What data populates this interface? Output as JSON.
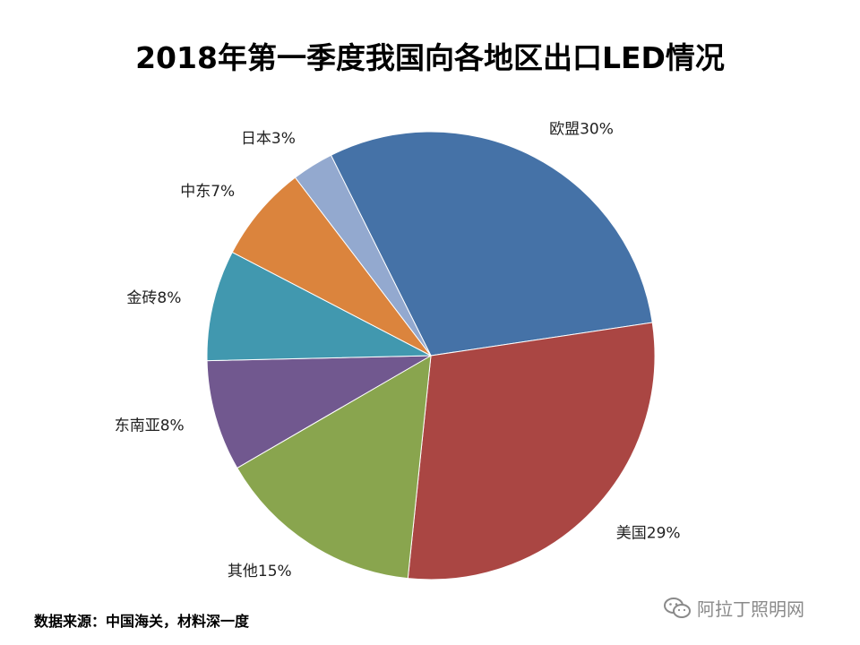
{
  "chart_data": {
    "type": "pie",
    "title": "2018年第一季度我国向各地区出口LED情况",
    "categories": [
      "欧盟",
      "美国",
      "其他",
      "东南亚",
      "金砖",
      "中东",
      "日本"
    ],
    "values": [
      30,
      29,
      15,
      8,
      8,
      7,
      3
    ],
    "labels": [
      "欧盟30%",
      "美国29%",
      "其他15%",
      "东南亚8%",
      "金砖8%",
      "中东7%",
      "日本3%"
    ],
    "colors": [
      "#4572A7",
      "#AA4643",
      "#89A54E",
      "#71588F",
      "#4198AF",
      "#DB843D",
      "#93A9CF"
    ],
    "legend": "none"
  },
  "footer": {
    "source": "数据来源：中国海关，材料深一度",
    "watermark": "阿拉丁照明网"
  },
  "icons": {
    "watermark_icon": "wechat-icon"
  }
}
